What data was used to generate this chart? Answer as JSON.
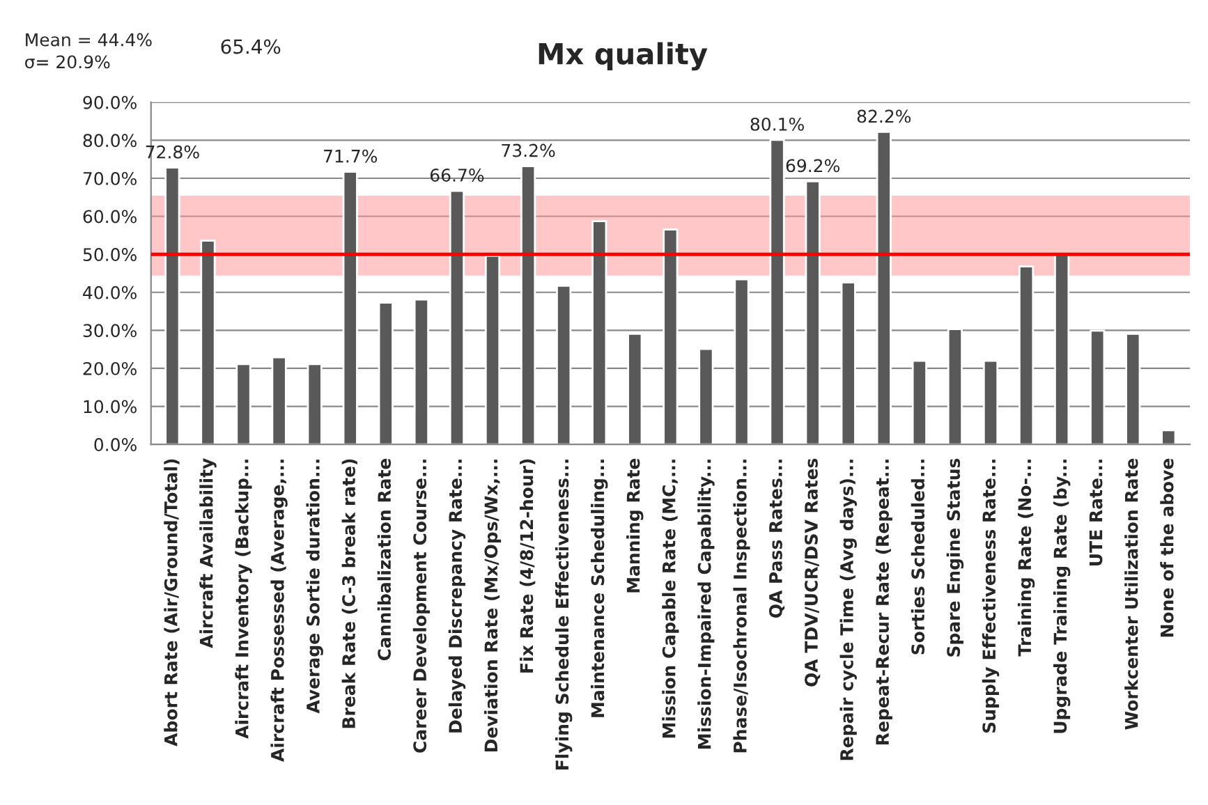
{
  "chart_data": {
    "type": "bar",
    "title": "Mx quality",
    "categories": [
      "Abort Rate (Air/Ground/Total)",
      "Aircraft Availability",
      "Aircraft Inventory (Backup...",
      "Aircraft Possessed (Average,...",
      "Average Sortie duration...",
      "Break Rate (C-3 break rate)",
      "Cannibalization Rate",
      "Career Development Course...",
      "Delayed Discrepancy Rate...",
      "Deviation Rate (Mx/Ops/Wx,...",
      "Fix Rate (4/8/12-hour)",
      "Flying Schedule Effectiveness...",
      "Maintenance Scheduling...",
      "Manning Rate",
      "Mission Capable Rate (MC,...",
      "Mission-Impaired Capability...",
      "Phase/Isochronal Inspection...",
      "QA Pass Rates...",
      "QA TDV/UCR/DSV Rates",
      "Repair cycle Time (Avg days)...",
      "Repeat-Recur Rate (Repeat...",
      "Sorties Scheduled...",
      "Spare Engine Status",
      "Supply Effectiveness Rate...",
      "Training Rate (No-...",
      "Upgrade Training Rate (by...",
      "UTE Rate...",
      "Workcenter Utilization Rate",
      "None of the above"
    ],
    "values": [
      72.8,
      53.6,
      21.1,
      22.9,
      21.1,
      71.7,
      37.3,
      38.1,
      66.7,
      49.6,
      73.2,
      41.7,
      58.7,
      29.1,
      56.5,
      25.1,
      43.4,
      80.1,
      69.2,
      42.6,
      82.2,
      22.0,
      30.3,
      22.0,
      46.8,
      50.0,
      29.9,
      29.1,
      3.7
    ],
    "value_labels": [
      "72.8%",
      null,
      null,
      null,
      null,
      "71.7%",
      null,
      null,
      "66.7%",
      null,
      "73.2%",
      null,
      null,
      null,
      null,
      null,
      null,
      "80.1%",
      "69.2%",
      null,
      "82.2%",
      null,
      null,
      null,
      null,
      null,
      null,
      null,
      null
    ],
    "color": "#595959",
    "ylim": [
      0,
      90
    ],
    "yticks": [
      {
        "value": 0,
        "label": "0.0%"
      },
      {
        "value": 10,
        "label": "10.0%"
      },
      {
        "value": 20,
        "label": "20.0%"
      },
      {
        "value": 30,
        "label": "30.0%"
      },
      {
        "value": 40,
        "label": "40.0%"
      },
      {
        "value": 50,
        "label": "50.0%"
      },
      {
        "value": 60,
        "label": "60.0%"
      },
      {
        "value": 70,
        "label": "70.0%"
      },
      {
        "value": 80,
        "label": "80.0%"
      },
      {
        "value": 90,
        "label": "90.0%"
      }
    ],
    "grid": "y",
    "ref_lines": [
      {
        "axis": "y",
        "value": 50,
        "color": "#ff0000"
      }
    ],
    "bands": [
      {
        "axis": "y",
        "from": 44.4,
        "to": 65.4,
        "color": "#ff9999"
      }
    ],
    "annotations": [
      "Mean = 44.4%\nσ= 20.9%",
      "65.4%"
    ]
  }
}
